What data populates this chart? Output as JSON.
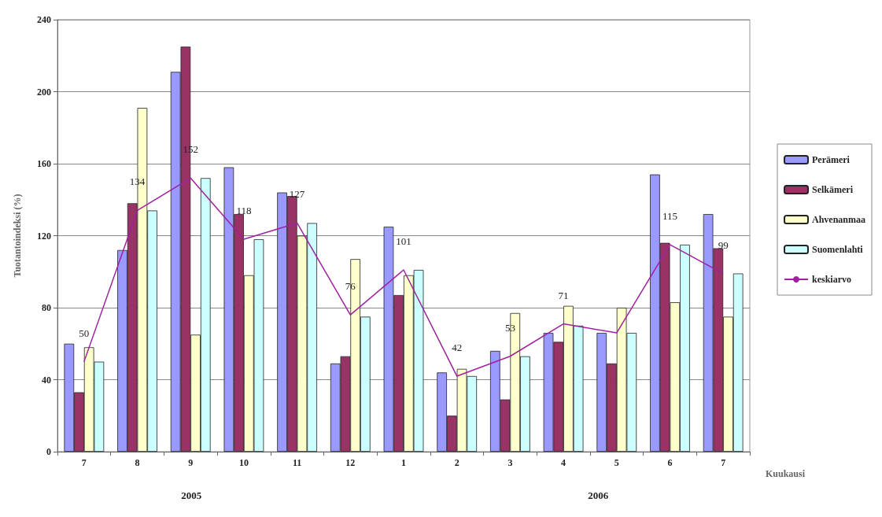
{
  "chart_data": {
    "type": "bar",
    "xlabel": "Kuukausi",
    "ylabel": "Tuotantoindeksi (%)",
    "categories": [
      "7",
      "8",
      "9",
      "10",
      "11",
      "12",
      "1",
      "2",
      "3",
      "4",
      "5",
      "6",
      "7"
    ],
    "series": [
      {
        "name": "Perämeri",
        "color": "#9999ff",
        "values": [
          60,
          112,
          211,
          158,
          144,
          49,
          125,
          44,
          56,
          66,
          66,
          154,
          132
        ]
      },
      {
        "name": "Selkämeri",
        "color": "#993366",
        "values": [
          33,
          138,
          225,
          132,
          142,
          53,
          87,
          20,
          29,
          61,
          49,
          116,
          113
        ]
      },
      {
        "name": "Ahvenanmaa",
        "color": "#ffffcc",
        "values": [
          58,
          191,
          65,
          98,
          120,
          107,
          98,
          46,
          77,
          81,
          80,
          83,
          75
        ]
      },
      {
        "name": "Suomenlahti",
        "color": "#ccffff",
        "values": [
          50,
          134,
          152,
          118,
          127,
          75,
          101,
          42,
          53,
          70,
          66,
          115,
          99
        ]
      },
      {
        "name": "keskiarvo",
        "type": "line",
        "color": "#a020a0",
        "marker": "none",
        "values": [
          50,
          134,
          152,
          118,
          127,
          76,
          101,
          42,
          53,
          71,
          66,
          115,
          99
        ],
        "value_labels": [
          "50",
          "134",
          "152",
          "118",
          "127",
          "76",
          "101",
          "42",
          "53",
          "71",
          null,
          "115",
          "99"
        ]
      }
    ],
    "ylim": [
      0,
      240
    ],
    "yticks": [
      0,
      40,
      80,
      120,
      160,
      200,
      240
    ],
    "grid": "y",
    "legend": "right",
    "annotations": [
      "2005",
      "2006"
    ]
  }
}
